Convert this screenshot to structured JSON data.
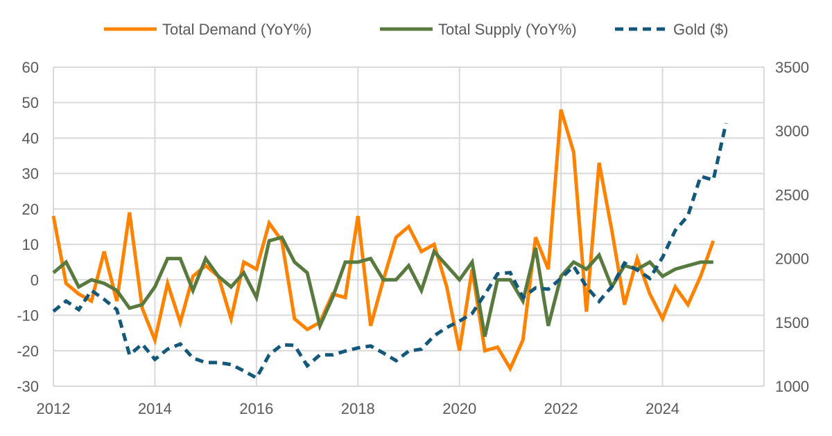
{
  "chart_data": {
    "type": "line",
    "title": "",
    "legend_position": "top",
    "x_start": 2012,
    "x_step": 0.25,
    "x_ticks": [
      "2012",
      "2014",
      "2016",
      "2018",
      "2020",
      "2022",
      "2024"
    ],
    "xlim": [
      2012,
      2026
    ],
    "y_left": {
      "ticks": [
        "60",
        "50",
        "40",
        "30",
        "20",
        "10",
        "0",
        "-10",
        "-20",
        "-30"
      ],
      "ylim": [
        -30,
        60
      ]
    },
    "y_right": {
      "ticks": [
        "3500",
        "3000",
        "2500",
        "2000",
        "1500",
        "1000"
      ],
      "ylim": [
        1000,
        3500
      ]
    },
    "grid": true,
    "series": [
      {
        "name": "Total Demand (YoY%)",
        "axis": "left",
        "color": "#FF8200",
        "dash": false,
        "values": [
          18,
          -1,
          -4,
          -6,
          8,
          -6,
          19,
          -8,
          -17,
          -1,
          -12,
          1,
          4,
          1,
          -11,
          5,
          3,
          16,
          11,
          -11,
          -14,
          -12,
          -4,
          -5,
          18,
          -13,
          0,
          12,
          15,
          8,
          10,
          -2,
          -20,
          3,
          -20,
          -19,
          -25,
          -17,
          12,
          3,
          48,
          36,
          -9,
          33,
          14,
          -7,
          6,
          -4,
          -11,
          -2,
          -7,
          1,
          11
        ]
      },
      {
        "name": "Total Supply (YoY%)",
        "axis": "left",
        "color": "#587A3E",
        "dash": false,
        "values": [
          2,
          5,
          -2,
          0,
          -1,
          -3,
          -8,
          -7,
          -2,
          6,
          6,
          -3,
          6,
          1,
          -2,
          2,
          -5,
          11,
          12,
          5,
          2,
          -13,
          -5,
          5,
          5,
          6,
          0,
          0,
          4,
          -3,
          8,
          4,
          0,
          5,
          -16,
          0,
          0,
          -6,
          9,
          -13,
          1,
          5,
          3,
          7,
          -2,
          4,
          3,
          5,
          1,
          3,
          4,
          5,
          5
        ]
      },
      {
        "name": "Gold ($)",
        "axis": "right",
        "color": "#13587A",
        "dash": true,
        "values": [
          1586,
          1667,
          1600,
          1750,
          1680,
          1600,
          1245,
          1330,
          1210,
          1290,
          1330,
          1220,
          1185,
          1185,
          1170,
          1120,
          1065,
          1245,
          1325,
          1320,
          1160,
          1245,
          1245,
          1275,
          1300,
          1315,
          1260,
          1200,
          1275,
          1290,
          1395,
          1460,
          1510,
          1570,
          1720,
          1880,
          1890,
          1695,
          1770,
          1760,
          1845,
          1940,
          1780,
          1665,
          1780,
          1965,
          1910,
          1845,
          2010,
          2220,
          2335,
          2645,
          2615,
          3060
        ]
      }
    ]
  }
}
